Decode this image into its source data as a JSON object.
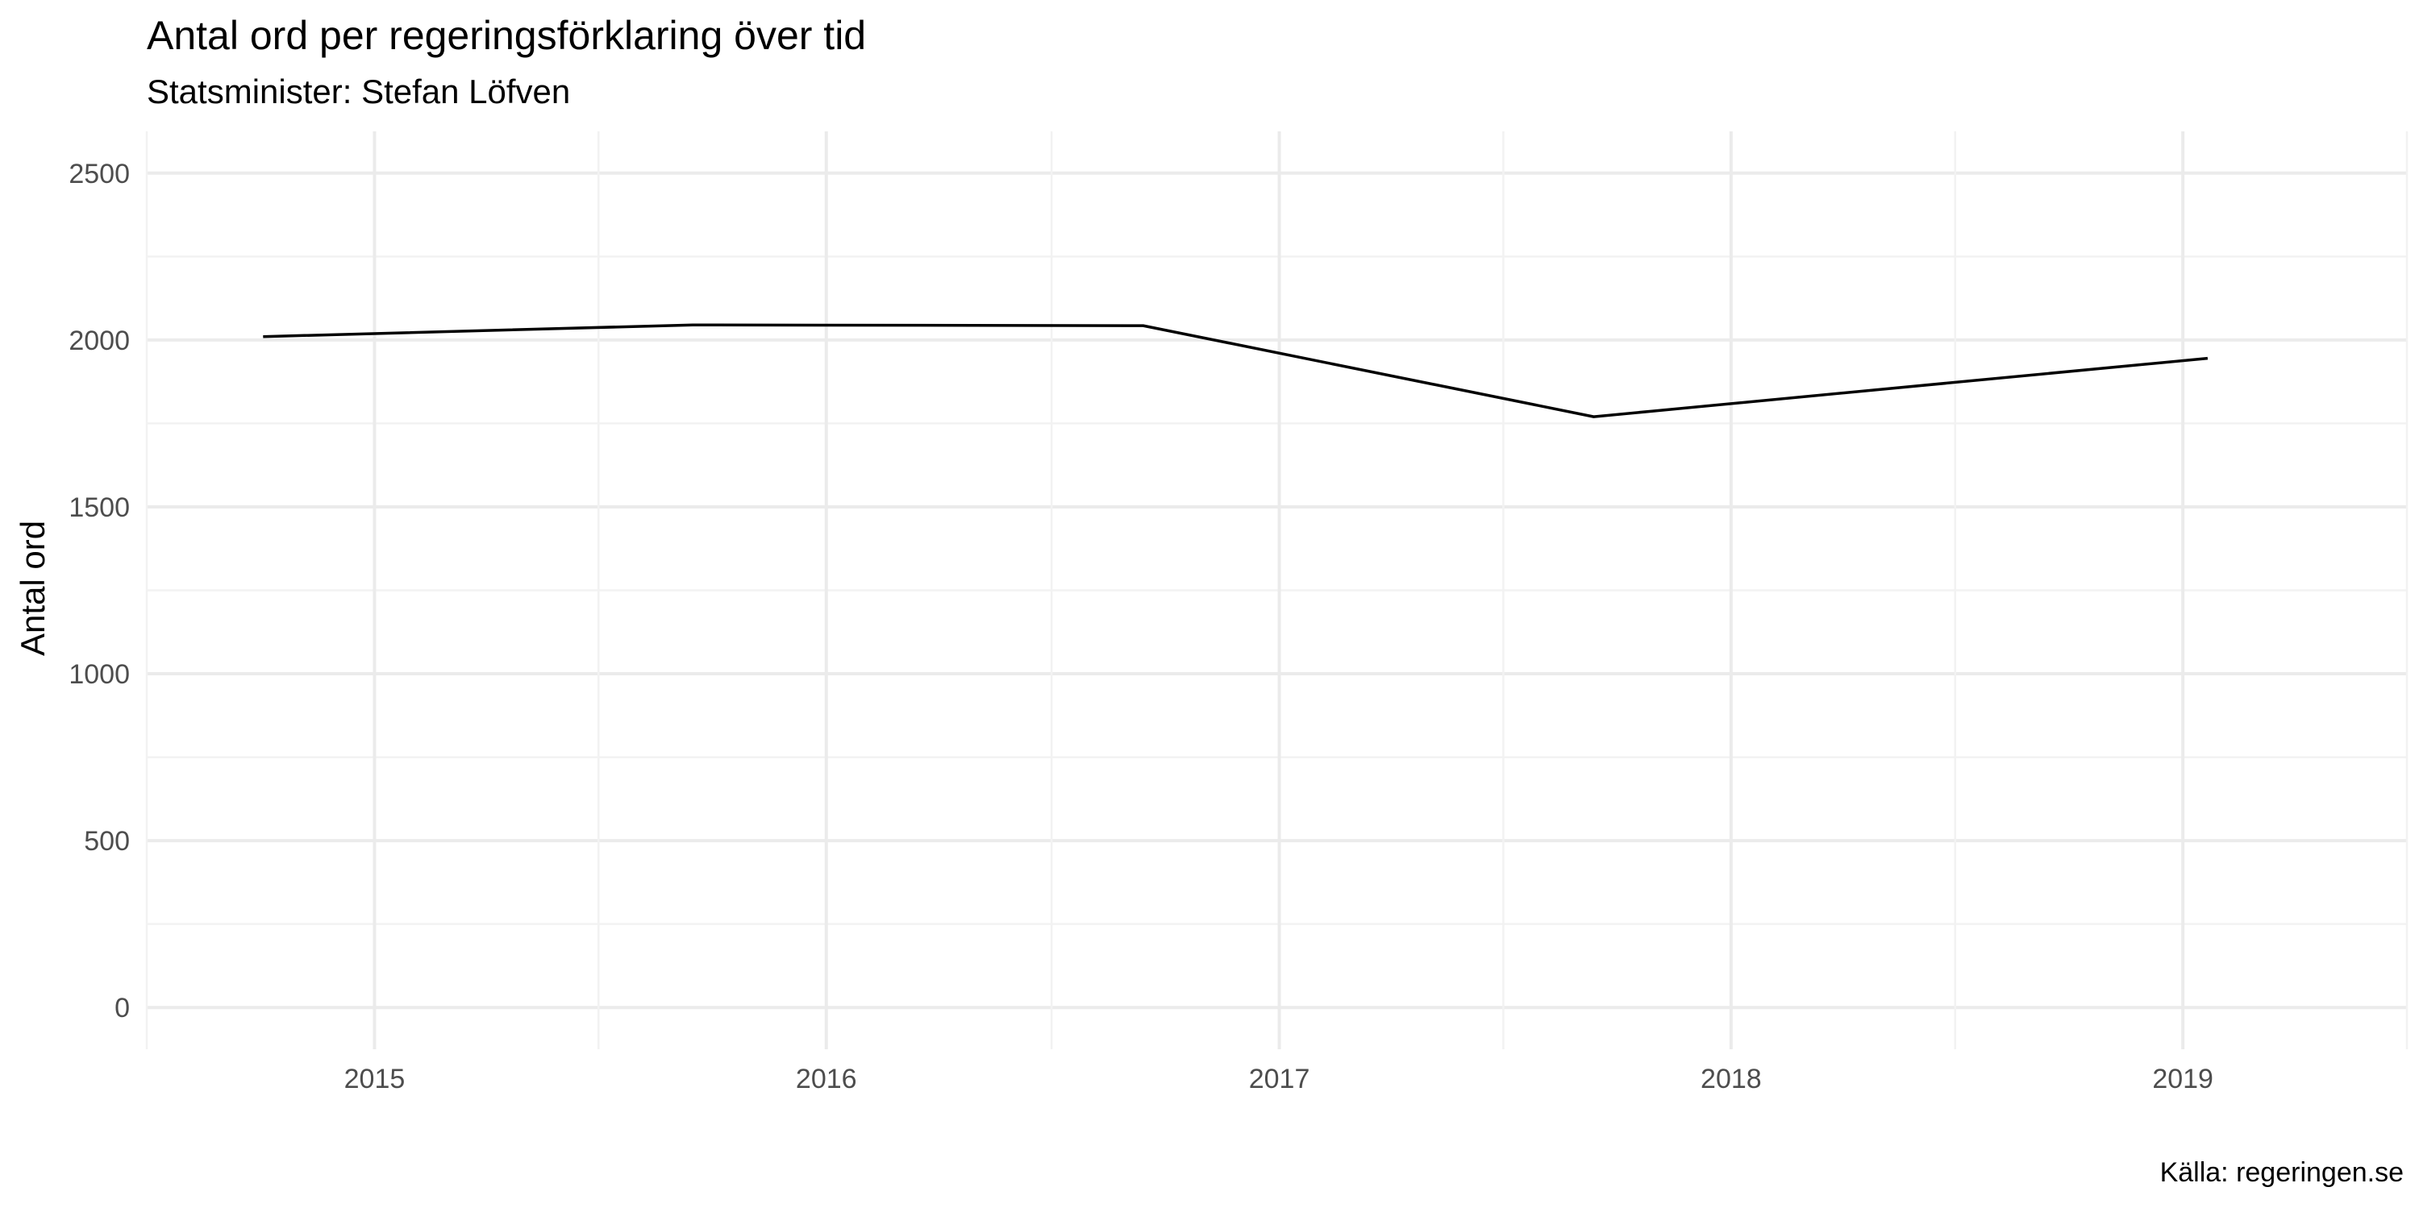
{
  "chart_data": {
    "type": "line",
    "title": "Antal ord per regeringsförklaring över tid",
    "subtitle": "Statsminister: Stefan Löfven",
    "xlabel": "",
    "ylabel": "Antal ord",
    "caption": "Källa: regeringen.se",
    "x_ticks": [
      "2015",
      "2016",
      "2017",
      "2018",
      "2019"
    ],
    "y_ticks": [
      "0",
      "500",
      "1000",
      "1500",
      "2000",
      "2500"
    ],
    "xlim": [
      "2014-07-01",
      "2019-07-01"
    ],
    "ylim": [
      -125,
      2625
    ],
    "grid": true,
    "series": [
      {
        "color": "#000000",
        "points": [
          {
            "x": "2014-10-03",
            "y": 2010
          },
          {
            "x": "2015-09-15",
            "y": 2045
          },
          {
            "x": "2016-09-13",
            "y": 2043
          },
          {
            "x": "2017-09-12",
            "y": 1770
          },
          {
            "x": "2019-01-21",
            "y": 1945
          }
        ]
      }
    ]
  }
}
